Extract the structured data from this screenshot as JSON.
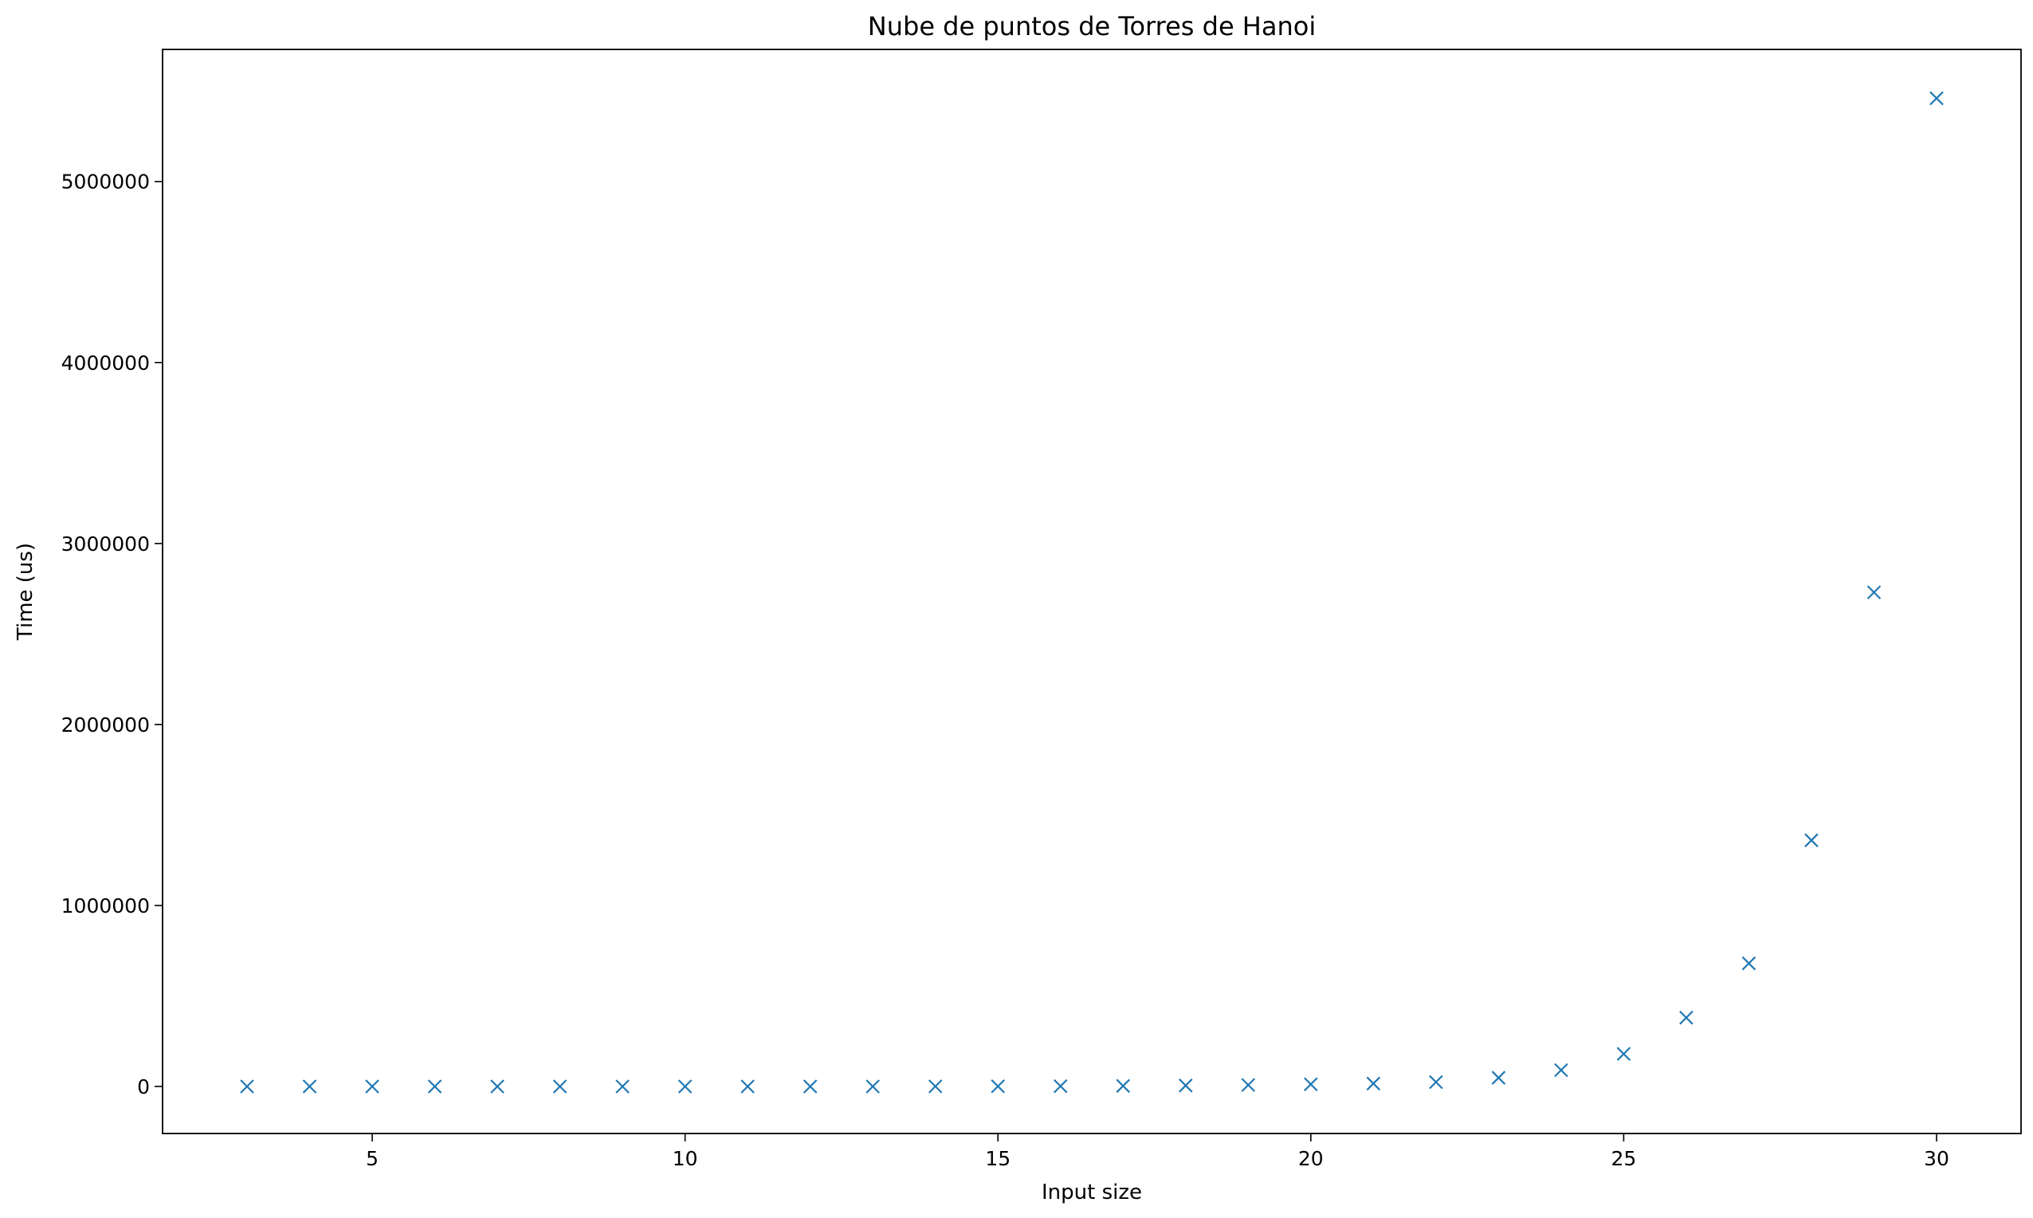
{
  "chart_data": {
    "type": "scatter",
    "title": "Nube de puntos de Torres de Hanoi",
    "xlabel": "Input size",
    "ylabel": "Time (us)",
    "xlim": [
      1.65,
      31.35
    ],
    "ylim": [
      -260000,
      5730000
    ],
    "x_ticks": [
      5,
      10,
      15,
      20,
      25,
      30
    ],
    "y_ticks": [
      0,
      1000000,
      2000000,
      3000000,
      4000000,
      5000000
    ],
    "x_tick_labels": [
      "5",
      "10",
      "15",
      "20",
      "25",
      "30"
    ],
    "y_tick_labels": [
      "0",
      "1000000",
      "2000000",
      "3000000",
      "4000000",
      "5000000"
    ],
    "grid": false,
    "marker": "x",
    "color": "#1f77b4",
    "series": [
      {
        "name": "Torres de Hanoi",
        "x": [
          3,
          4,
          5,
          6,
          7,
          8,
          9,
          10,
          11,
          12,
          13,
          14,
          15,
          16,
          17,
          18,
          19,
          20,
          21,
          22,
          23,
          24,
          25,
          26,
          27,
          28,
          29,
          30
        ],
        "y": [
          0,
          0,
          0,
          0,
          0,
          0,
          0,
          0,
          0,
          0,
          0,
          500,
          1000,
          1500,
          3000,
          5000,
          8000,
          12000,
          16000,
          24000,
          48000,
          90000,
          180000,
          380000,
          680000,
          1360000,
          2730000,
          5460000
        ]
      }
    ]
  }
}
